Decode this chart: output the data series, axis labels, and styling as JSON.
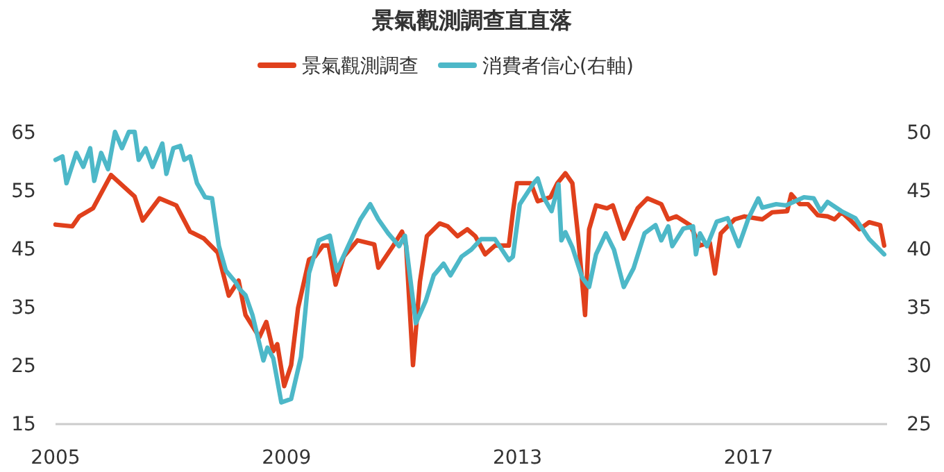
{
  "chart_data": {
    "type": "line",
    "title": "景氣觀測調查直直落",
    "legend": "top",
    "line_style": "solid",
    "marker": "none",
    "xlim": [
      2005,
      2019.4
    ],
    "xticks": [
      2005,
      2009,
      2013,
      2017
    ],
    "ylim": [
      15,
      65
    ],
    "yticks": [
      15,
      25,
      35,
      45,
      55,
      65
    ],
    "y2lim": [
      25,
      50
    ],
    "y2ticks": [
      25,
      30,
      35,
      40,
      45,
      50
    ],
    "series": [
      {
        "name": "景氣觀測調查",
        "color": "#e0401c",
        "x": [
          2005.0,
          2005.29,
          2005.41,
          2005.65,
          2005.96,
          2006.37,
          2006.51,
          2006.8,
          2007.09,
          2007.33,
          2007.57,
          2007.81,
          2008.0,
          2008.17,
          2008.29,
          2008.53,
          2008.65,
          2008.77,
          2008.84,
          2008.96,
          2009.08,
          2009.2,
          2009.39,
          2009.49,
          2009.63,
          2009.73,
          2009.85,
          2009.99,
          2010.23,
          2010.52,
          2010.59,
          2010.83,
          2011.0,
          2011.07,
          2011.19,
          2011.31,
          2011.43,
          2011.65,
          2011.79,
          2011.96,
          2012.13,
          2012.27,
          2012.44,
          2012.61,
          2012.85,
          2012.92,
          2012.99,
          2013.23,
          2013.35,
          2013.57,
          2013.69,
          2013.83,
          2013.95,
          2014.05,
          2014.17,
          2014.24,
          2014.36,
          2014.55,
          2014.65,
          2014.84,
          2015.08,
          2015.25,
          2015.49,
          2015.61,
          2015.75,
          2015.99,
          2016.16,
          2016.33,
          2016.42,
          2016.52,
          2016.76,
          2016.93,
          2017.24,
          2017.41,
          2017.67,
          2017.74,
          2017.89,
          2018.03,
          2018.2,
          2018.37,
          2018.49,
          2018.61,
          2018.75,
          2018.92,
          2019.09,
          2019.28,
          2019.35
        ],
        "values": [
          49.1,
          48.8,
          50.5,
          51.9,
          57.6,
          53.9,
          49.8,
          53.6,
          52.4,
          47.9,
          46.7,
          44.3,
          36.9,
          39.5,
          33.6,
          29.8,
          32.4,
          27.4,
          28.6,
          21.4,
          25,
          34.8,
          43.1,
          43.6,
          45.5,
          45.5,
          38.8,
          43.6,
          46.4,
          45.7,
          41.7,
          45.2,
          47.9,
          45.5,
          25,
          39.3,
          47.1,
          49.3,
          48.8,
          47.1,
          48.3,
          47.1,
          44,
          45.5,
          45.5,
          51.2,
          56.2,
          56.2,
          53.1,
          53.8,
          56.2,
          57.9,
          56.2,
          47.1,
          33.6,
          48.3,
          52.4,
          51.9,
          52.4,
          46.7,
          51.9,
          53.6,
          52.6,
          50,
          50.5,
          49,
          45.5,
          46,
          40.7,
          47.6,
          50,
          50.5,
          50,
          51.2,
          51.4,
          54.3,
          52.6,
          52.6,
          50.7,
          50.5,
          50,
          51.2,
          50,
          48.3,
          49.5,
          49,
          45.5
        ]
      },
      {
        "name": "消費者信心(右軸)",
        "color": "#4db8c8",
        "axis": "y2",
        "x": [
          2005.0,
          2005.12,
          2005.19,
          2005.36,
          2005.48,
          2005.6,
          2005.67,
          2005.79,
          2005.91,
          2006.03,
          2006.15,
          2006.27,
          2006.37,
          2006.44,
          2006.56,
          2006.68,
          2006.85,
          2006.92,
          2007.04,
          2007.16,
          2007.23,
          2007.33,
          2007.45,
          2007.59,
          2007.71,
          2007.83,
          2007.95,
          2008.12,
          2008.19,
          2008.29,
          2008.41,
          2008.6,
          2008.67,
          2008.77,
          2008.91,
          2009.08,
          2009.25,
          2009.39,
          2009.56,
          2009.75,
          2009.87,
          2010.04,
          2010.28,
          2010.45,
          2010.59,
          2010.76,
          2010.95,
          2011.05,
          2011.24,
          2011.41,
          2011.55,
          2011.72,
          2011.84,
          2012.03,
          2012.2,
          2012.37,
          2012.61,
          2012.85,
          2012.92,
          2013.04,
          2013.28,
          2013.35,
          2013.45,
          2013.59,
          2013.71,
          2013.76,
          2013.83,
          2013.95,
          2014.12,
          2014.24,
          2014.36,
          2014.53,
          2014.67,
          2014.84,
          2015.01,
          2015.2,
          2015.39,
          2015.49,
          2015.61,
          2015.68,
          2015.87,
          2016.04,
          2016.09,
          2016.16,
          2016.28,
          2016.45,
          2016.64,
          2016.83,
          2017.0,
          2017.17,
          2017.24,
          2017.48,
          2017.65,
          2017.96,
          2018.13,
          2018.25,
          2018.37,
          2018.61,
          2018.85,
          2019.09,
          2019.35
        ],
        "values": [
          47.6,
          47.9,
          45.6,
          48.2,
          47,
          48.6,
          45.8,
          48.2,
          46.8,
          50,
          48.6,
          50,
          50,
          47.6,
          48.6,
          47,
          49,
          46.4,
          48.6,
          48.8,
          47.6,
          47.9,
          45.6,
          44.4,
          44.3,
          40.2,
          38.1,
          37.1,
          36.5,
          36,
          34.3,
          30.4,
          31.5,
          30.6,
          26.8,
          27.1,
          30.7,
          37.9,
          40.7,
          41.1,
          38.1,
          39.9,
          42.5,
          43.8,
          42.5,
          41.3,
          40.2,
          41.1,
          33.6,
          35.5,
          37.7,
          38.7,
          37.7,
          39.3,
          39.9,
          40.8,
          40.8,
          39,
          39.3,
          43.8,
          45.6,
          46,
          44.4,
          43.2,
          45.5,
          40.7,
          41.4,
          40.1,
          37.5,
          36.7,
          39.5,
          41.3,
          39.9,
          36.7,
          38.3,
          41.3,
          42,
          40.7,
          41.9,
          40.2,
          41.7,
          41.9,
          39.5,
          41.3,
          40.2,
          42.3,
          42.6,
          40.2,
          42.6,
          44.3,
          43.5,
          43.8,
          43.7,
          44.4,
          44.3,
          43.2,
          44,
          43.2,
          42.6,
          40.8,
          39.5
        ]
      }
    ]
  }
}
